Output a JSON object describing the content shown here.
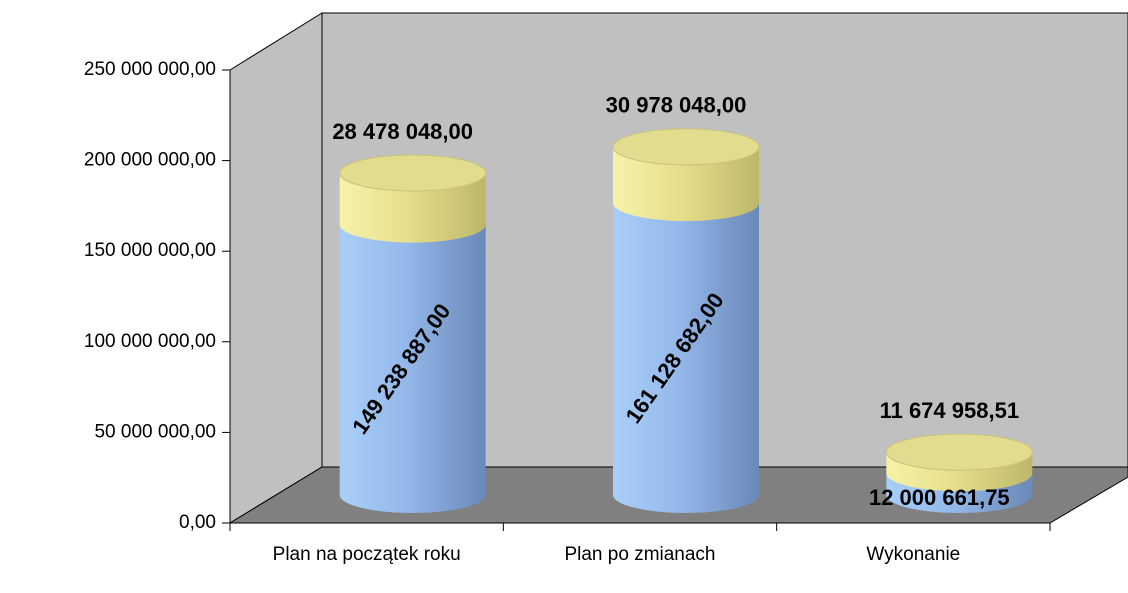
{
  "chart_data": {
    "type": "bar3d-stacked-cylinder",
    "categories": [
      "Plan na początek roku",
      "Plan po zmianach",
      "Wykonanie"
    ],
    "series": [
      {
        "color": "#8fb4e8",
        "values": [
          149238887,
          161128682,
          12000661.75
        ],
        "value_labels": [
          "149 238 887,00",
          "161 128 682,00",
          "12 000 661,75"
        ]
      },
      {
        "color": "#e6e08c",
        "values": [
          28478048,
          30978048,
          11674958.51
        ],
        "value_labels": [
          "28 478 048,00",
          "30 978 048,00",
          "11 674 958,51"
        ]
      }
    ],
    "ylim": [
      0,
      250000000
    ],
    "yticks": [
      {
        "value": 0,
        "label": "0,00"
      },
      {
        "value": 50000000,
        "label": "50 000 000,00"
      },
      {
        "value": 100000000,
        "label": "100 000 000,00"
      },
      {
        "value": 150000000,
        "label": "150 000 000,00"
      },
      {
        "value": 200000000,
        "label": "200 000 000,00"
      },
      {
        "value": 250000000,
        "label": "250 000 000,00"
      }
    ]
  }
}
